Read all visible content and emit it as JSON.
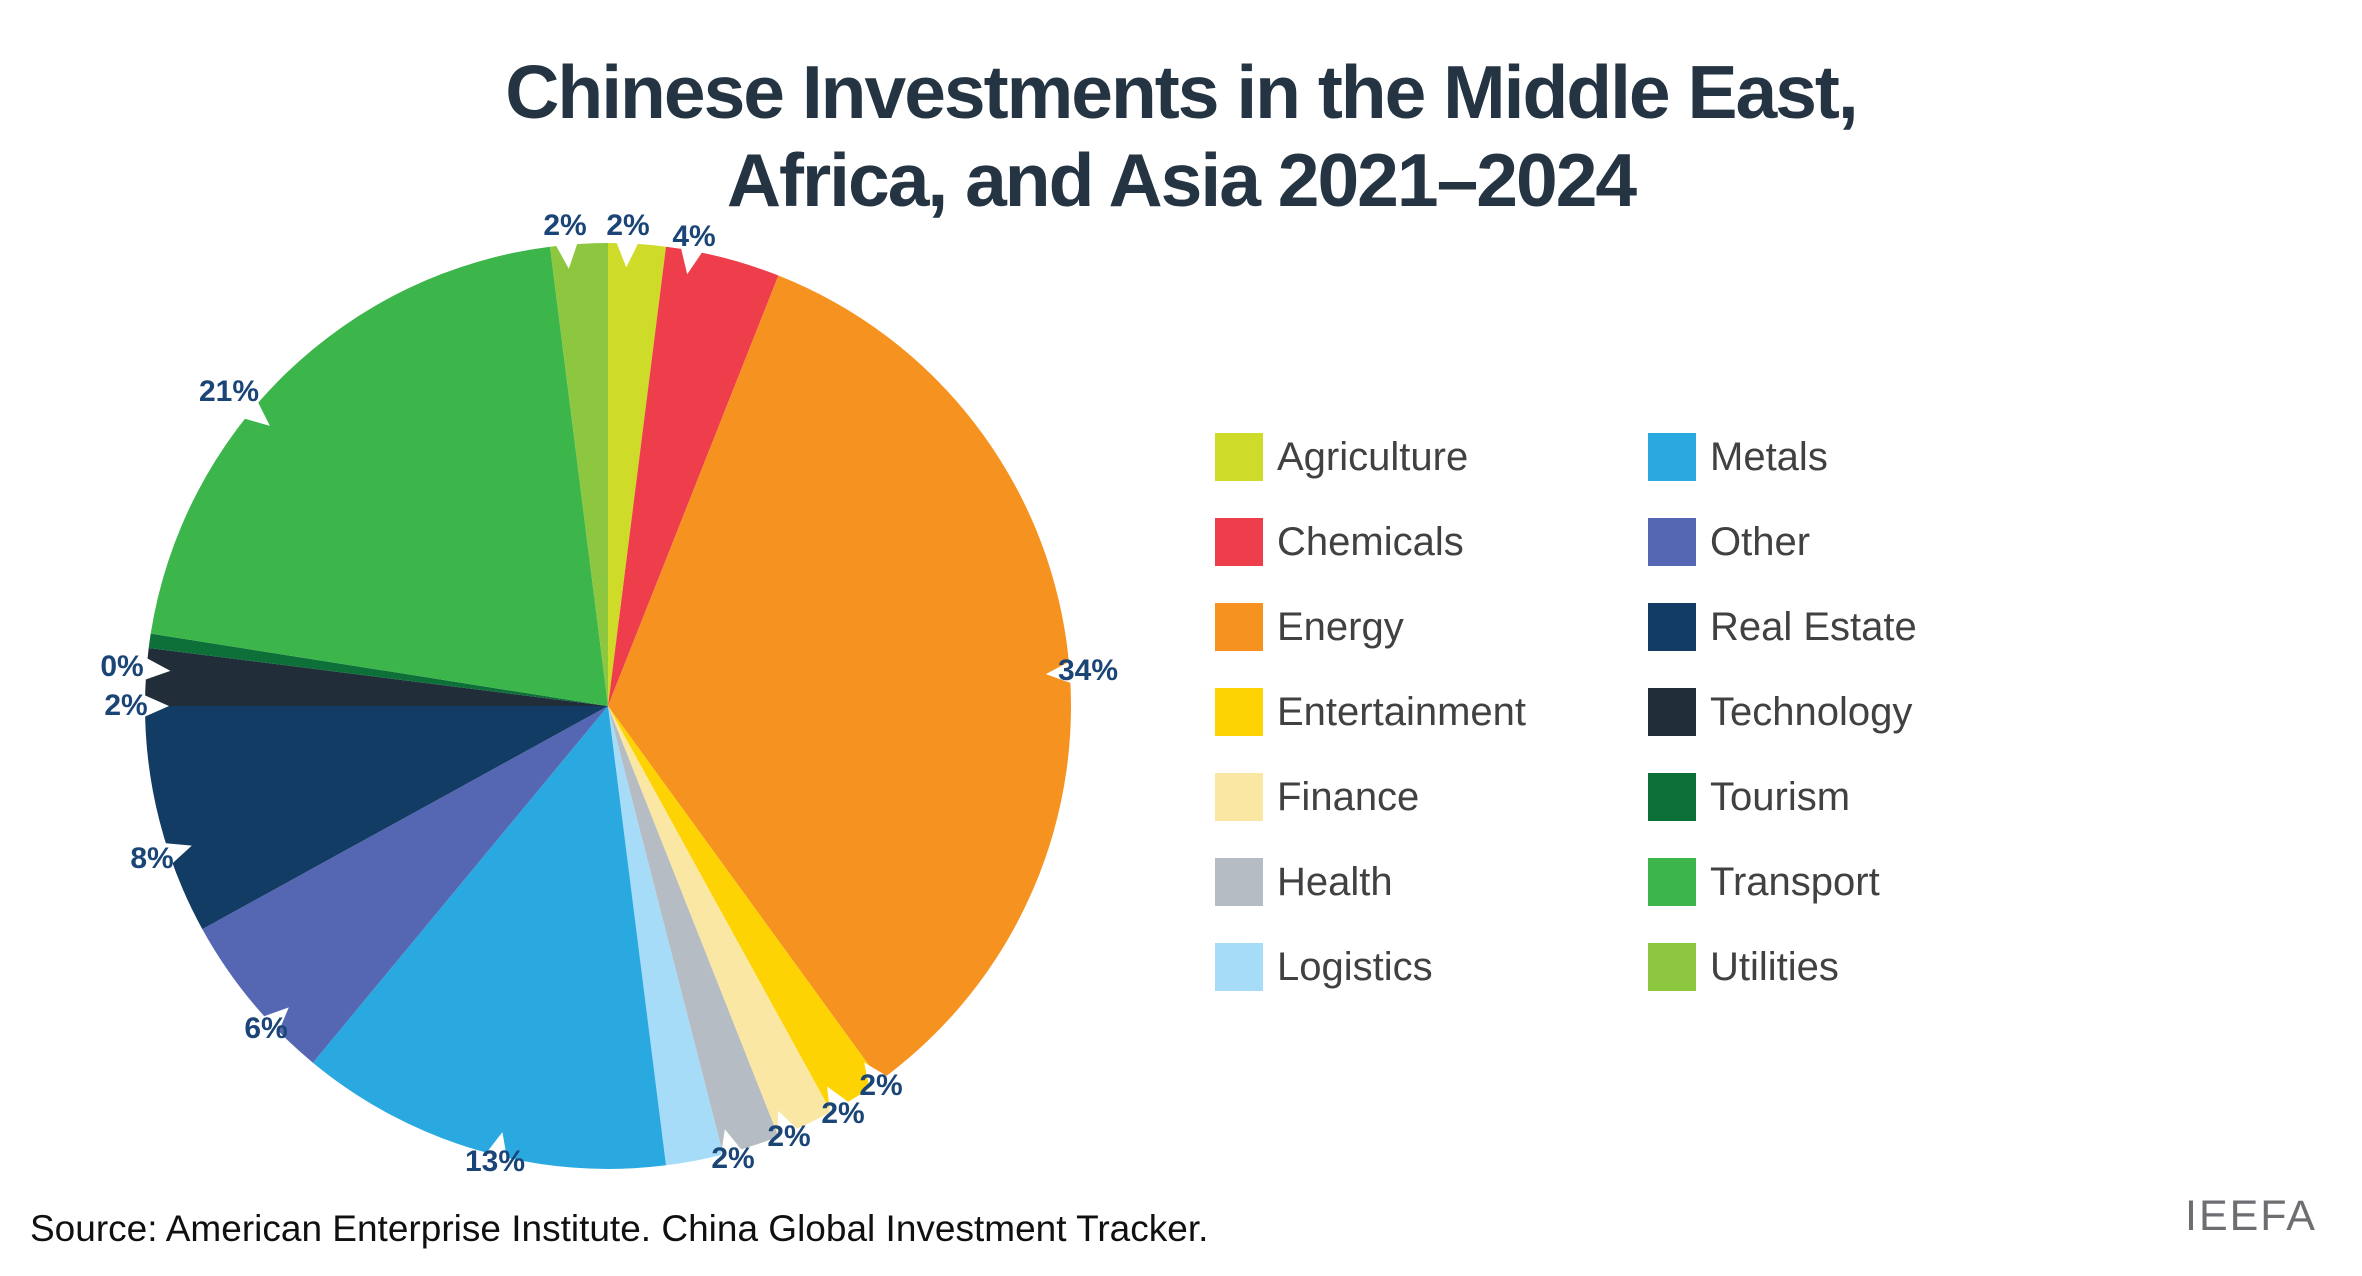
{
  "title": {
    "line1": "Chinese Investments in the Middle East,",
    "line2": "Africa, and Asia 2021–2024"
  },
  "source": "Source: American Enterprise Institute. China Global Investment Tracker.",
  "logo": "IEEFA",
  "colors": {
    "title_text": "#253442",
    "percent_label_text": "#1a4576",
    "legend_text": "#414042",
    "source_text": "#101010",
    "logo_text": "#6d6e71",
    "background": "#ffffff"
  },
  "chart_data": {
    "type": "pie",
    "title": "Chinese Investments in the Middle East, Africa, and Asia 2021–2024",
    "direction": "clockwise",
    "start_angle_deg": 0,
    "legend_position": "right",
    "legend_columns": 2,
    "slices": [
      {
        "name": "Agriculture",
        "value": 2,
        "label": "2%",
        "color": "#cedb29"
      },
      {
        "name": "Chemicals",
        "value": 4,
        "label": "4%",
        "color": "#ee3e4c"
      },
      {
        "name": "Energy",
        "value": 34,
        "label": "34%",
        "color": "#f6921f"
      },
      {
        "name": "Entertainment",
        "value": 2,
        "label": "2%",
        "color": "#fed304"
      },
      {
        "name": "Finance",
        "value": 2,
        "label": "2%",
        "color": "#fbe7a4"
      },
      {
        "name": "Health",
        "value": 2,
        "label": "2%",
        "color": "#b6bcc3"
      },
      {
        "name": "Logistics",
        "value": 2,
        "label": "2%",
        "color": "#a6dcf7"
      },
      {
        "name": "Metals",
        "value": 13,
        "label": "13%",
        "color": "#29a9e0"
      },
      {
        "name": "Other",
        "value": 6,
        "label": "6%",
        "color": "#5567b2"
      },
      {
        "name": "Real Estate",
        "value": 8,
        "label": "8%",
        "color": "#123c63"
      },
      {
        "name": "Technology",
        "value": 2,
        "label": "2%",
        "color": "#212e3a"
      },
      {
        "name": "Tourism",
        "value": 0,
        "label": "0%",
        "color": "#0d7039"
      },
      {
        "name": "Transport",
        "value": 21,
        "label": "21%",
        "color": "#3cb54b"
      },
      {
        "name": "Utilities",
        "value": 2,
        "label": "2%",
        "color": "#8dc63f"
      }
    ]
  }
}
